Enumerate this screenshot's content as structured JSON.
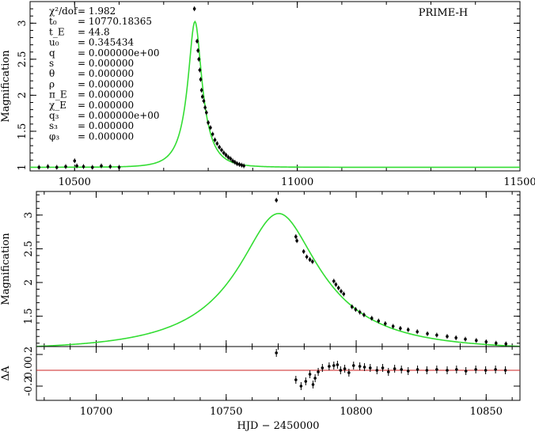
{
  "chart_data": [
    {
      "type": "line",
      "panel": "overview",
      "observatory": "PRIME-H",
      "ylabel": "Magnification",
      "xlim": [
        10400,
        11500
      ],
      "ylim": [
        0.95,
        3.3
      ],
      "x_ticks": [
        10500,
        11000,
        11500
      ],
      "x_minor_step": 100,
      "y_ticks": [
        1,
        1.5,
        2,
        2.5,
        3
      ],
      "y_minor_step": 0.1,
      "model_params": {
        "t0": 10770.18365,
        "u0": 0.345434,
        "tE": 44.8
      },
      "param_labels": [
        {
          "sym": "χ²/dof",
          "val": "= 1.982"
        },
        {
          "sym": "t₀",
          "val": "= 10770.18365"
        },
        {
          "sym": "t_E",
          "val": "= 44.8"
        },
        {
          "sym": "u₀",
          "val": "= 0.345434"
        },
        {
          "sym": "q",
          "val": "= 0.000000e+00"
        },
        {
          "sym": "s",
          "val": "= 0.000000"
        },
        {
          "sym": "θ",
          "val": "= 0.000000"
        },
        {
          "sym": "ρ",
          "val": "= 0.000000"
        },
        {
          "sym": "π_E",
          "val": "= 0.000000"
        },
        {
          "sym": "χ_E",
          "val": "= 0.000000"
        },
        {
          "sym": "q₃",
          "val": "= 0.000000e+00"
        },
        {
          "sym": "s₃",
          "val": "= 0.000000"
        },
        {
          "sym": "φ₃",
          "val": "= 0.000000"
        }
      ],
      "model_color": "#33dd33",
      "data_color": "#000000",
      "data": [
        [
          10420,
          1.0
        ],
        [
          10440,
          1.01
        ],
        [
          10460,
          1.0
        ],
        [
          10480,
          1.01
        ],
        [
          10500,
          1.09
        ],
        [
          10505,
          1.02
        ],
        [
          10520,
          1.01
        ],
        [
          10540,
          1.0
        ],
        [
          10560,
          1.02
        ],
        [
          10580,
          1.01
        ],
        [
          10600,
          1.0
        ],
        [
          10769,
          3.2
        ],
        [
          10775,
          2.75
        ],
        [
          10777,
          2.62
        ],
        [
          10779,
          2.5
        ],
        [
          10781,
          2.35
        ],
        [
          10783,
          2.22
        ],
        [
          10785,
          2.07
        ],
        [
          10787,
          1.98
        ],
        [
          10790,
          1.92
        ],
        [
          10793,
          1.83
        ],
        [
          10796,
          1.76
        ],
        [
          10800,
          1.62
        ],
        [
          10805,
          1.55
        ],
        [
          10810,
          1.46
        ],
        [
          10815,
          1.38
        ],
        [
          10820,
          1.33
        ],
        [
          10825,
          1.28
        ],
        [
          10830,
          1.24
        ],
        [
          10835,
          1.2
        ],
        [
          10840,
          1.17
        ],
        [
          10845,
          1.14
        ],
        [
          10850,
          1.12
        ],
        [
          10855,
          1.09
        ],
        [
          10860,
          1.07
        ],
        [
          10865,
          1.05
        ],
        [
          10870,
          1.04
        ],
        [
          10875,
          1.03
        ],
        [
          10880,
          1.02
        ]
      ]
    },
    {
      "type": "line",
      "panel": "zoom",
      "ylabel": "Magnification",
      "xlim": [
        10677,
        10863
      ],
      "ylim": [
        1.05,
        3.35
      ],
      "x_ticks": [
        10700,
        10750,
        10800,
        10850
      ],
      "x_minor_step": 10,
      "y_ticks": [
        1.5,
        2,
        2.5,
        3
      ],
      "y_minor_step": 0.1,
      "data": [
        [
          10769.3,
          3.22
        ],
        [
          10776.8,
          2.68
        ],
        [
          10777.2,
          2.62
        ],
        [
          10779.8,
          2.46
        ],
        [
          10781.0,
          2.38
        ],
        [
          10782.2,
          2.34
        ],
        [
          10783.2,
          2.31
        ],
        [
          10791.4,
          2.02
        ],
        [
          10792.2,
          1.97
        ],
        [
          10793.2,
          1.92
        ],
        [
          10794.2,
          1.87
        ],
        [
          10795.2,
          1.83
        ],
        [
          10798.4,
          1.64
        ],
        [
          10799.8,
          1.6
        ],
        [
          10801.4,
          1.56
        ],
        [
          10803.0,
          1.52
        ],
        [
          10806.0,
          1.47
        ],
        [
          10808.6,
          1.43
        ],
        [
          10811.2,
          1.39
        ],
        [
          10814.2,
          1.35
        ],
        [
          10817.0,
          1.32
        ],
        [
          10820.0,
          1.3
        ],
        [
          10823.5,
          1.27
        ],
        [
          10827.4,
          1.24
        ],
        [
          10831.0,
          1.22
        ],
        [
          10835.0,
          1.2
        ],
        [
          10838.4,
          1.18
        ],
        [
          10842.0,
          1.16
        ],
        [
          10846.2,
          1.14
        ],
        [
          10850.0,
          1.12
        ],
        [
          10853.8,
          1.1
        ],
        [
          10857.6,
          1.09
        ]
      ]
    },
    {
      "type": "scatter",
      "panel": "residuals",
      "ylabel": "ΔA",
      "xlabel": "HJD − 2450000",
      "xlim": [
        10677,
        10863
      ],
      "ylim": [
        -0.38,
        0.3
      ],
      "x_ticks": [
        10700,
        10750,
        10800,
        10850
      ],
      "x_minor_step": 10,
      "y_ticks": [
        -0.2,
        0,
        0.2
      ],
      "y_tick_labels": [
        "-0.2",
        "0.0",
        "0.2"
      ],
      "zero_line_color": "#cc2222",
      "data": [
        [
          10769.3,
          0.22
        ],
        [
          10776.8,
          -0.12
        ],
        [
          10778.8,
          -0.2
        ],
        [
          10780.6,
          -0.14
        ],
        [
          10782.2,
          -0.05
        ],
        [
          10783.4,
          -0.18
        ],
        [
          10784.2,
          -0.1
        ],
        [
          10785.4,
          -0.02
        ],
        [
          10787.0,
          0.03
        ],
        [
          10789.6,
          0.05
        ],
        [
          10791.4,
          0.06
        ],
        [
          10792.8,
          0.07
        ],
        [
          10794.0,
          0.0
        ],
        [
          10795.6,
          0.02
        ],
        [
          10797.2,
          -0.03
        ],
        [
          10799.0,
          0.06
        ],
        [
          10801.4,
          0.05
        ],
        [
          10803.2,
          0.04
        ],
        [
          10805.4,
          0.03
        ],
        [
          10808.0,
          0.0
        ],
        [
          10810.2,
          0.03
        ],
        [
          10812.4,
          -0.02
        ],
        [
          10814.8,
          0.02
        ],
        [
          10817.4,
          0.01
        ],
        [
          10820.0,
          -0.01
        ],
        [
          10823.6,
          0.01
        ],
        [
          10827.2,
          0.0
        ],
        [
          10831.0,
          0.01
        ],
        [
          10835.0,
          0.0
        ],
        [
          10838.6,
          0.01
        ],
        [
          10842.2,
          -0.01
        ],
        [
          10846.0,
          0.01
        ],
        [
          10849.8,
          0.0
        ],
        [
          10853.6,
          0.01
        ],
        [
          10857.4,
          0.0
        ]
      ]
    }
  ]
}
